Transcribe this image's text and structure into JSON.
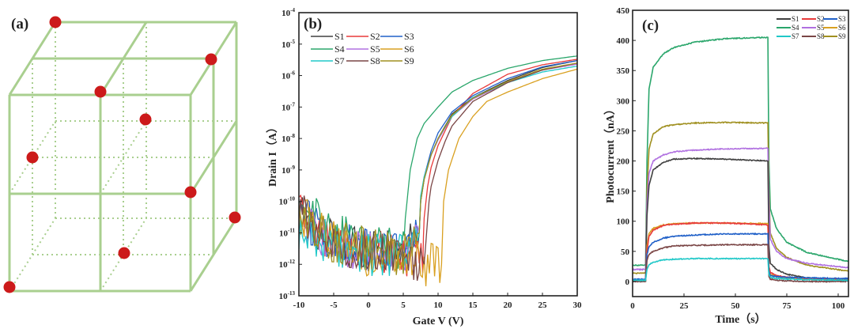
{
  "panels": {
    "a": {
      "label": "(a)",
      "colors": {
        "lattice": "#a9cf8f",
        "atom": "#cc1a1a"
      }
    },
    "b": {
      "label": "(b)"
    },
    "c": {
      "label": "(c)"
    }
  },
  "series_colors": {
    "S1": "#404040",
    "S2": "#e83a3a",
    "S3": "#2060c8",
    "S4": "#2aa66b",
    "S5": "#b070e0",
    "S6": "#d9a020",
    "S7": "#20c8c8",
    "S8": "#7a4545",
    "S9": "#a09020"
  },
  "chart_data": [
    {
      "panel": "b",
      "type": "line",
      "xlabel": "Gate V (V)",
      "ylabel": "Drain I（A）",
      "xlim": [
        -10,
        30
      ],
      "ylim": [
        1e-13,
        0.0001
      ],
      "yscale": "log",
      "xticks": [
        -10,
        -5,
        0,
        5,
        10,
        15,
        20,
        25,
        30
      ],
      "ytick_exponents": [
        -4,
        -5,
        -6,
        -7,
        -8,
        -9,
        -10,
        -11,
        -12,
        -13
      ],
      "ytick_base": "10",
      "legend": "top-left",
      "series": [
        {
          "name": "S1",
          "x": [
            -10,
            -8,
            -5,
            0,
            5,
            7.3,
            7.5,
            8,
            9,
            10,
            12,
            15,
            20,
            25,
            30
          ],
          "y": [
            5e-11,
            1.5e-11,
            5e-12,
            3e-12,
            2e-12,
            1e-11,
            1e-10,
            5e-10,
            3e-09,
            1e-08,
            6e-08,
            2e-07,
            7e-07,
            1.8e-06,
            3e-06
          ]
        },
        {
          "name": "S2",
          "x": [
            -10,
            -8,
            -5,
            0,
            5,
            7.8,
            8,
            8.5,
            9,
            10,
            12,
            15,
            20,
            25,
            30
          ],
          "y": [
            6e-11,
            1.5e-11,
            5e-12,
            3e-12,
            2e-12,
            2e-12,
            3e-11,
            3e-10,
            1.2e-09,
            6e-09,
            5e-08,
            2.7e-07,
            1.1e-06,
            2.2e-06,
            3.3e-06
          ]
        },
        {
          "name": "S3",
          "x": [
            -10,
            -8,
            -5,
            0,
            5,
            7.3,
            7.5,
            8,
            9,
            10,
            12,
            15,
            20,
            25,
            30
          ],
          "y": [
            5e-11,
            1.5e-11,
            5e-12,
            3e-12,
            2e-12,
            1e-11,
            1e-10,
            6e-10,
            4e-09,
            1.5e-08,
            7e-08,
            2.3e-07,
            8e-07,
            1.9e-06,
            3e-06
          ]
        },
        {
          "name": "S4",
          "x": [
            -10,
            -8,
            -5,
            0,
            5,
            5.3,
            6,
            7,
            8,
            10,
            12,
            15,
            20,
            25,
            30
          ],
          "y": [
            1e-10,
            3e-11,
            1e-11,
            6e-12,
            3e-12,
            3e-11,
            1e-09,
            1e-08,
            3e-08,
            1e-07,
            3e-07,
            7e-07,
            1.7e-06,
            3e-06,
            4.2e-06
          ]
        },
        {
          "name": "S5",
          "x": [
            -10,
            -8,
            -5,
            0,
            5,
            7.3,
            7.5,
            8,
            9,
            10,
            12,
            15,
            20,
            25,
            30
          ],
          "y": [
            5e-11,
            1.2e-11,
            4e-12,
            3e-12,
            2e-12,
            1e-11,
            1e-10,
            5e-10,
            3e-09,
            9e-09,
            5e-08,
            1.8e-07,
            6e-07,
            1.5e-06,
            2.3e-06
          ]
        },
        {
          "name": "S6",
          "x": [
            -10,
            -8,
            -5,
            0,
            5,
            8,
            10.5,
            10.8,
            11.5,
            13,
            15,
            17,
            20,
            25,
            30
          ],
          "y": [
            5e-11,
            1.5e-11,
            5e-12,
            2e-12,
            2e-12,
            1e-12,
            1e-12,
            1e-10,
            1e-09,
            1e-08,
            5e-08,
            1.5e-07,
            3e-07,
            8e-07,
            1.6e-06
          ]
        },
        {
          "name": "S7",
          "x": [
            -10,
            -8,
            -5,
            0,
            5,
            7.3,
            7.5,
            8,
            9,
            10,
            12,
            15,
            20,
            25,
            30
          ],
          "y": [
            1.5e-11,
            8e-12,
            4e-12,
            2e-12,
            2e-12,
            1e-11,
            1.5e-10,
            6e-10,
            3e-09,
            1e-08,
            5e-08,
            2e-07,
            6e-07,
            1.3e-06,
            2e-06
          ]
        },
        {
          "name": "S8",
          "x": [
            -10,
            -8,
            -5,
            0,
            5,
            8,
            8.7,
            9,
            10,
            11,
            12,
            15,
            20,
            25,
            30
          ],
          "y": [
            5e-11,
            1.5e-11,
            5e-12,
            3e-12,
            2e-12,
            1e-12,
            1e-10,
            3e-10,
            2e-09,
            8e-09,
            2.5e-08,
            1.5e-07,
            6e-07,
            1.5e-06,
            2.5e-06
          ]
        },
        {
          "name": "S9",
          "x": [
            -10,
            -8,
            -5,
            0,
            5,
            7.3,
            7.5,
            8,
            9,
            10,
            12,
            15,
            20,
            25,
            30
          ],
          "y": [
            5e-11,
            1.5e-11,
            5e-12,
            3e-12,
            2e-12,
            1e-11,
            1e-10,
            5e-10,
            3e-09,
            1e-08,
            5.5e-08,
            1.9e-07,
            6.5e-07,
            1.6e-06,
            2.5e-06
          ]
        }
      ]
    },
    {
      "panel": "c",
      "type": "line",
      "xlabel": "Time（s）",
      "ylabel": "Photocurrent（nA）",
      "xlim": [
        0,
        105
      ],
      "ylim": [
        -25,
        450
      ],
      "xticks": [
        0,
        25,
        50,
        75,
        100
      ],
      "yticks": [
        0,
        50,
        100,
        150,
        200,
        250,
        300,
        350,
        400,
        450
      ],
      "legend": "top-right",
      "x": [
        0,
        6.3,
        7,
        8,
        10,
        15,
        20,
        30,
        45,
        65.8,
        66.3,
        67,
        70,
        75,
        85,
        105
      ],
      "series": [
        {
          "name": "S1",
          "values": [
            1,
            1,
            110,
            160,
            185,
            198,
            203,
            204,
            203,
            200,
            60,
            30,
            20,
            12,
            6,
            2
          ]
        },
        {
          "name": "S2",
          "values": [
            2,
            2,
            50,
            75,
            85,
            93,
            95,
            97,
            97,
            94,
            25,
            15,
            10,
            7,
            5,
            4
          ]
        },
        {
          "name": "S3",
          "values": [
            4,
            4,
            45,
            58,
            65,
            72,
            75,
            77,
            79,
            79,
            18,
            10,
            8,
            7,
            6,
            5
          ]
        },
        {
          "name": "S4",
          "values": [
            27,
            27,
            200,
            320,
            355,
            378,
            388,
            397,
            403,
            405,
            200,
            120,
            88,
            65,
            48,
            33
          ]
        },
        {
          "name": "S5",
          "values": [
            20,
            20,
            130,
            180,
            200,
            210,
            215,
            218,
            220,
            221,
            130,
            70,
            50,
            38,
            30,
            23
          ]
        },
        {
          "name": "S6",
          "values": [
            2,
            2,
            60,
            80,
            88,
            94,
            96,
            97,
            97,
            96,
            25,
            12,
            8,
            6,
            4,
            3
          ]
        },
        {
          "name": "S7",
          "values": [
            2,
            2,
            20,
            28,
            32,
            36,
            37,
            38,
            38,
            38,
            12,
            7,
            5,
            4,
            3,
            2
          ]
        },
        {
          "name": "S8",
          "values": [
            0,
            0,
            35,
            45,
            50,
            56,
            59,
            60,
            61,
            61,
            8,
            4,
            2,
            1,
            0,
            0
          ]
        },
        {
          "name": "S9",
          "values": [
            14,
            14,
            150,
            220,
            245,
            257,
            260,
            263,
            264,
            263,
            150,
            80,
            55,
            40,
            27,
            17
          ]
        }
      ]
    }
  ]
}
